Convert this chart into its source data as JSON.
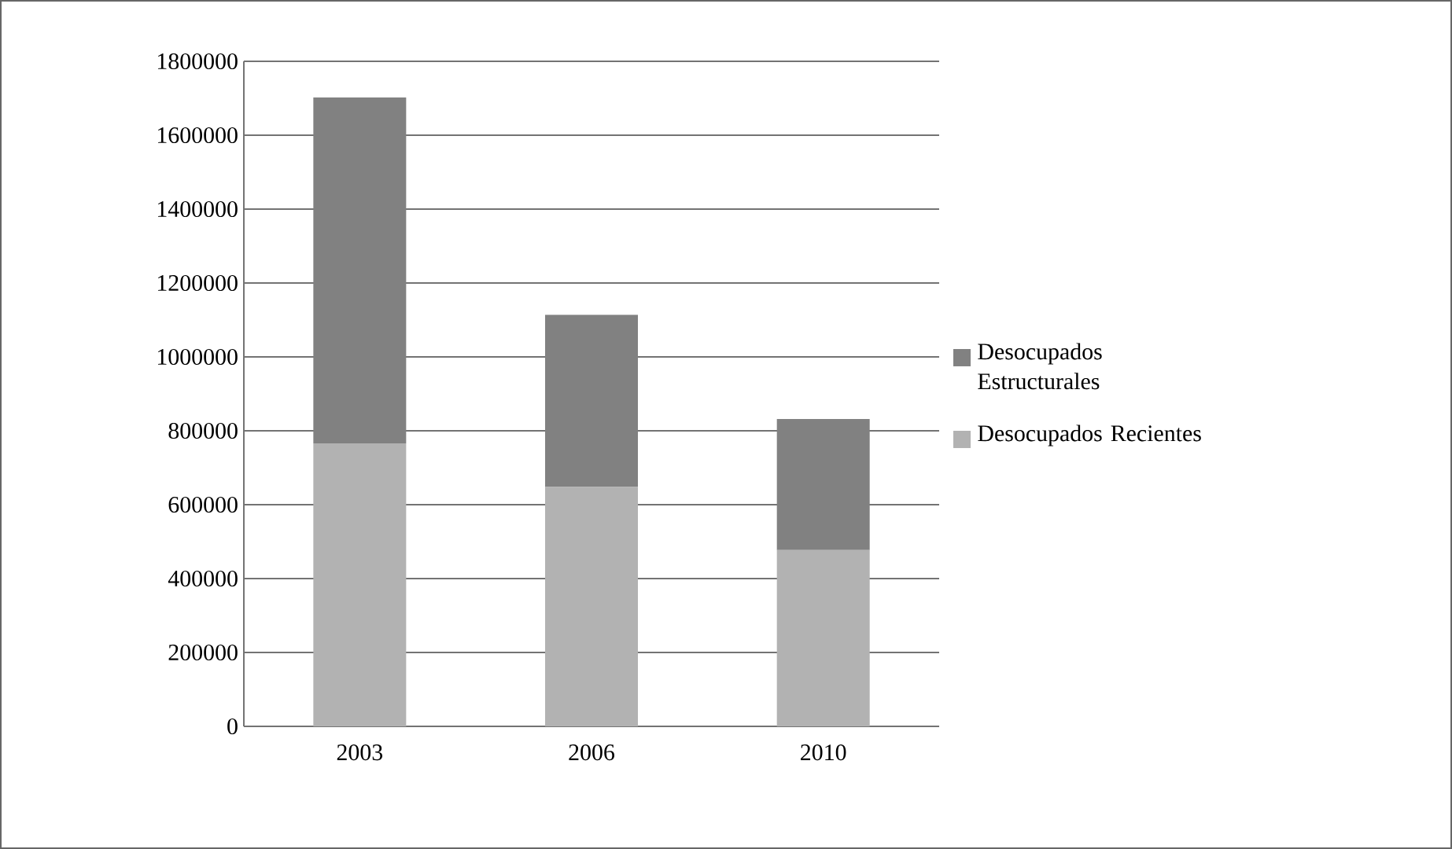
{
  "chart_data": {
    "type": "bar",
    "stacked": true,
    "categories": [
      "2003",
      "2006",
      "2010"
    ],
    "series": [
      {
        "name": "Desocupados Recientes",
        "color": "#b2b2b2",
        "values": [
          766000,
          648000,
          477000
        ]
      },
      {
        "name": "Desocupados Estructurales",
        "color": "#818181",
        "values": [
          936000,
          466000,
          355000
        ]
      }
    ],
    "ylim": [
      0,
      1800000
    ],
    "yticks": [
      0,
      200000,
      400000,
      600000,
      800000,
      1000000,
      1200000,
      1400000,
      1600000,
      1800000
    ],
    "grid": "y",
    "legend": "right"
  }
}
